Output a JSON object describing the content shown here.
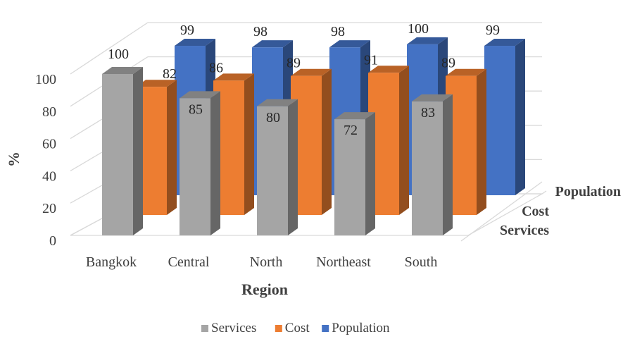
{
  "chart_data": {
    "type": "bar",
    "subtype": "3d-clustered-column",
    "categories": [
      "Bangkok",
      "Central",
      "North",
      "Northeast",
      "South"
    ],
    "series": [
      {
        "name": "Services",
        "values": [
          100,
          85,
          80,
          72,
          83
        ],
        "color": "#a5a5a5"
      },
      {
        "name": "Cost",
        "values": [
          82,
          86,
          89,
          91,
          89
        ],
        "color": "#ed7d31"
      },
      {
        "name": "Population",
        "values": [
          99,
          98,
          98,
          100,
          99
        ],
        "color": "#4472c4"
      }
    ],
    "xlabel": "Region",
    "ylabel": "%",
    "yticks": [
      "0",
      "20",
      "40",
      "60",
      "80",
      "100"
    ],
    "ylim": [
      0,
      100
    ],
    "grid": true,
    "legend": "bottom"
  }
}
